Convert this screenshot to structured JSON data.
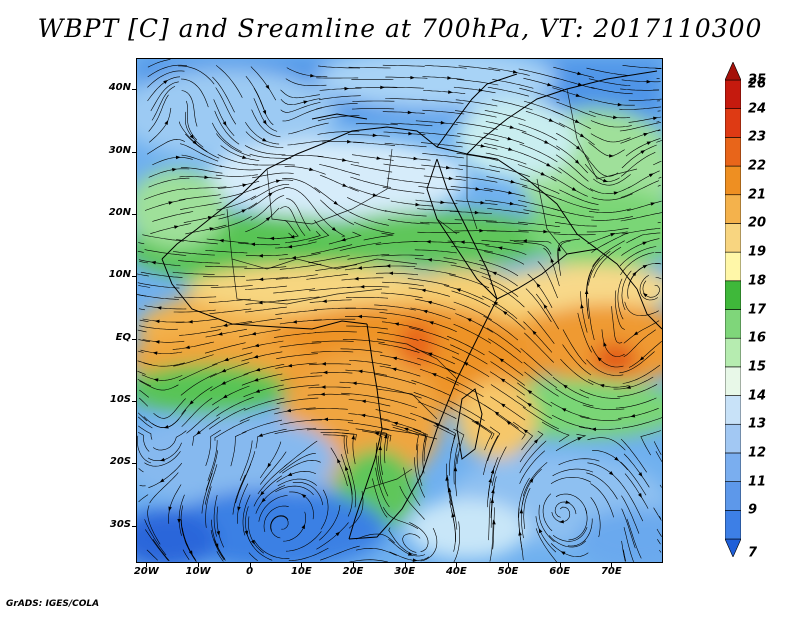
{
  "title": "WBPT [C] and Sreamline at 700hPa, VT: 2017110300",
  "credit": "GrADS: IGES/COLA",
  "lat_labels": [
    {
      "text": "40N",
      "lat": 40
    },
    {
      "text": "30N",
      "lat": 30
    },
    {
      "text": "20N",
      "lat": 20
    },
    {
      "text": "10N",
      "lat": 10
    },
    {
      "text": "EQ",
      "lat": 0
    },
    {
      "text": "10S",
      "lat": -10
    },
    {
      "text": "20S",
      "lat": -20
    },
    {
      "text": "30S",
      "lat": -30
    }
  ],
  "lon_labels": [
    {
      "text": "20W",
      "lon": -20
    },
    {
      "text": "10W",
      "lon": -10
    },
    {
      "text": "0",
      "lon": 0
    },
    {
      "text": "10E",
      "lon": 10
    },
    {
      "text": "20E",
      "lon": 20
    },
    {
      "text": "30E",
      "lon": 30
    },
    {
      "text": "40E",
      "lon": 40
    },
    {
      "text": "50E",
      "lon": 50
    },
    {
      "text": "60E",
      "lon": 60
    },
    {
      "text": "70E",
      "lon": 70
    }
  ],
  "map_extent": {
    "lon_min": -22,
    "lon_max": 80,
    "lat_min": -36,
    "lat_max": 45
  },
  "colorbar": {
    "labels": [
      "7",
      "9",
      "11",
      "12",
      "13",
      "14",
      "15",
      "16",
      "17",
      "18",
      "19",
      "20",
      "21",
      "22",
      "23",
      "24",
      "25",
      "26"
    ],
    "colors": [
      "#1f5fd8",
      "#3d7fe6",
      "#5d98ea",
      "#7aaeef",
      "#a2c8f3",
      "#c8e2f8",
      "#e8f8e8",
      "#b6ecb0",
      "#7fd67a",
      "#3fb83a",
      "#fff7a8",
      "#f8d580",
      "#f4b24c",
      "#ee8f22",
      "#e8651a",
      "#de3a14",
      "#c51a0e",
      "#a5110a"
    ]
  }
}
